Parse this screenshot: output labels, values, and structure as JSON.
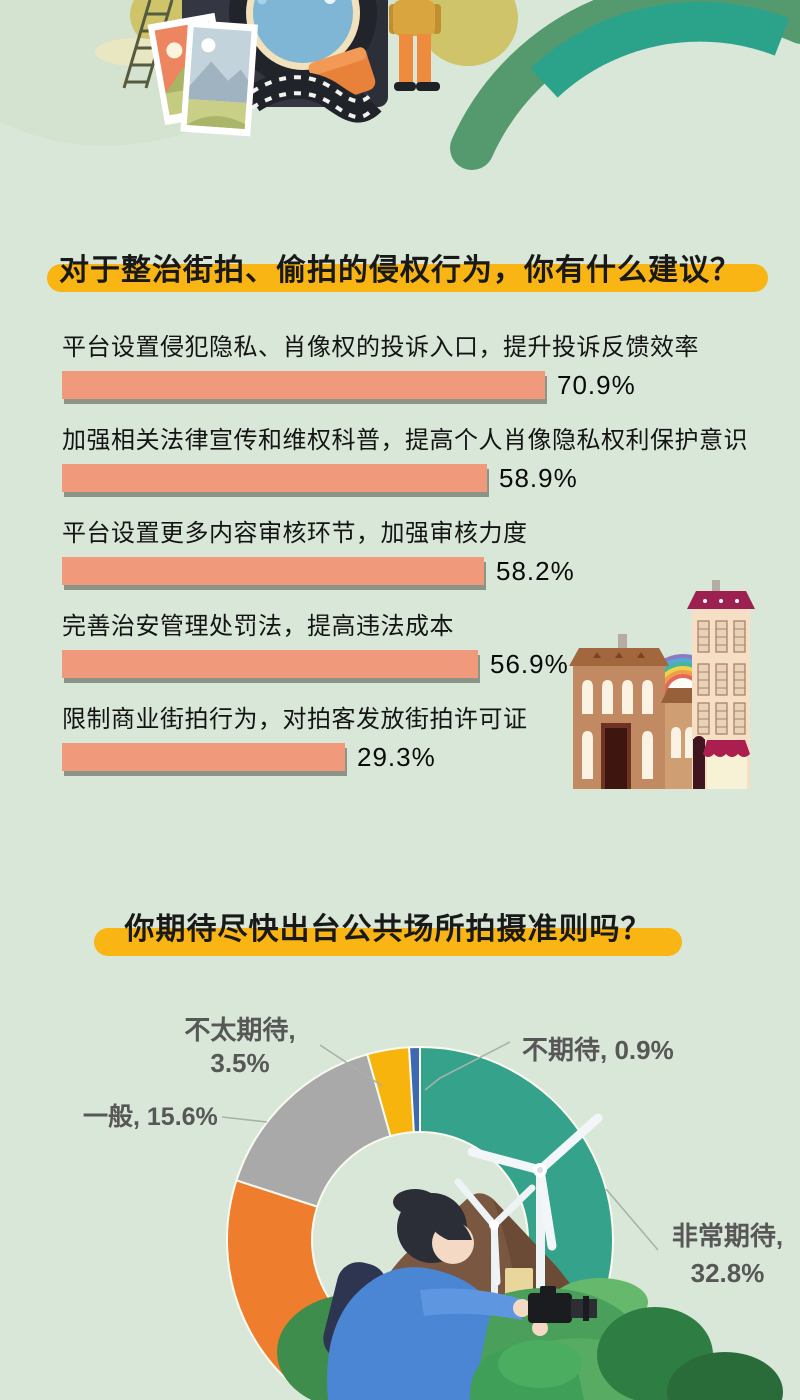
{
  "page": {
    "background_color": "#d9e7d8",
    "accent_yellow": "#f9b513",
    "bar_color": "#f09a7b"
  },
  "chart_data": [
    {
      "type": "bar",
      "orientation": "horizontal",
      "title": "对于整治街拍、偷拍的侵权行为，你有什么建议？",
      "categories": [
        "平台设置侵犯隐私、肖像权的投诉入口，提升投诉反馈效率",
        "加强相关法律宣传和维权科普，提高个人肖像隐私权利保护意识",
        "平台设置更多内容审核环节，加强审核力度",
        "完善治安管理处罚法，提高违法成本",
        "限制商业街拍行为，对拍客发放街拍许可证"
      ],
      "values": [
        70.9,
        58.9,
        58.2,
        56.9,
        29.3
      ],
      "value_labels": [
        "70.9%",
        "58.9%",
        "58.2%",
        "56.9%",
        "29.3%"
      ],
      "bar_color": "#f09a7b",
      "grid": false,
      "legend": false
    },
    {
      "type": "pie",
      "donut": true,
      "title": "你期待尽快出台公共场所拍摄准则吗？",
      "start_angle": "top",
      "direction": "clockwise",
      "legend": false,
      "slices": [
        {
          "label": "非常期待",
          "value": 32.8,
          "color": "#35a28c",
          "display_line1": "非常期待,",
          "display_line2": "32.8%"
        },
        {
          "label": "",
          "value": 47.2,
          "color": "#ee7d2d",
          "display_line1": "",
          "display_line2": ""
        },
        {
          "label": "一般",
          "value": 15.6,
          "color": "#a9a9a9",
          "display": "一般, 15.6%"
        },
        {
          "label": "不太期待",
          "value": 3.5,
          "color": "#f6b40d",
          "display_line1": "不太期待,",
          "display_line2": "3.5%"
        },
        {
          "label": "不期待",
          "value": 0.9,
          "color": "#3c69b0",
          "display": "不期待, 0.9%"
        }
      ]
    }
  ]
}
